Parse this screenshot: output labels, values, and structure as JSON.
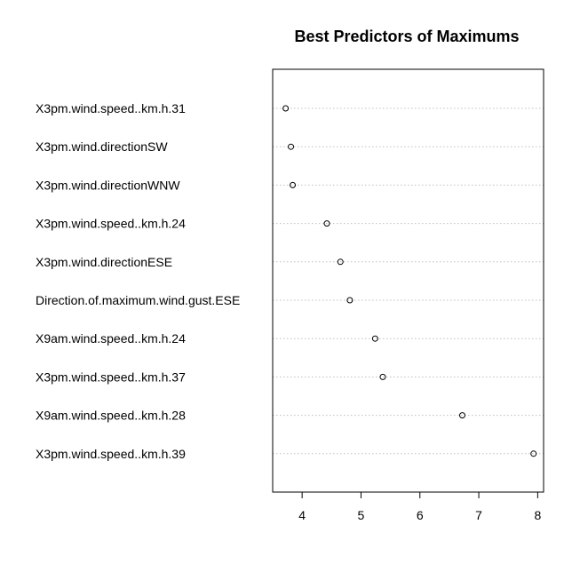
{
  "chart_data": {
    "type": "scatter",
    "subtype": "dotchart",
    "title": "Best Predictors of Maximums",
    "xlabel": "",
    "ylabel": "",
    "xlim": [
      3.5,
      8.1
    ],
    "xticks": [
      4,
      5,
      6,
      7,
      8
    ],
    "grid": "horizontal dotted guide lines",
    "legend": "none",
    "categories": [
      "X3pm.wind.speed..km.h.31",
      "X3pm.wind.directionSW",
      "X3pm.wind.directionWNW",
      "X3pm.wind.speed..km.h.24",
      "X3pm.wind.directionESE",
      "Direction.of.maximum.wind.gust.ESE",
      "X9am.wind.speed..km.h.24",
      "X3pm.wind.speed..km.h.37",
      "X9am.wind.speed..km.h.28",
      "X3pm.wind.speed..km.h.39"
    ],
    "values": [
      3.72,
      3.81,
      3.84,
      4.42,
      4.65,
      4.81,
      5.24,
      5.37,
      6.72,
      7.93
    ]
  }
}
